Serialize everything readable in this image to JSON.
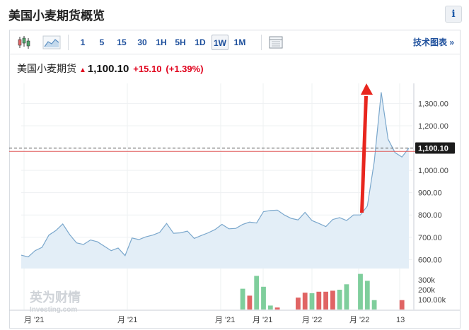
{
  "page": {
    "title": "美国小麦期货概览",
    "info_label": "i"
  },
  "toolbar": {
    "intervals": [
      "1",
      "5",
      "15",
      "30",
      "1H",
      "5H",
      "1D",
      "1W",
      "1M"
    ],
    "active_interval": "1W",
    "tech_link": "技术图表 »"
  },
  "quote": {
    "name": "美国小麦期货",
    "price": "1,100.10",
    "change": "+15.10",
    "change_pct": "(+1.39%)"
  },
  "watermark": {
    "cn": "英为财情",
    "en": "Investing.com"
  },
  "colors": {
    "accent": "#1d4f9c",
    "up": "#e0001b",
    "area_line": "#7aa7cc",
    "area_fill": "#e3eef7",
    "volume_up": "#7fce9c",
    "volume_down": "#e06464",
    "annotation_arrow": "#e8261e"
  },
  "chart_data": [
    {
      "type": "area",
      "title": "",
      "xlabel": "",
      "ylabel": "",
      "x_tick_labels": [
        "月 '21",
        "月 '21",
        "月 '21",
        "月 '21",
        "月 '22",
        "月 '22",
        "13"
      ],
      "y_tick_labels": [
        "600.00",
        "700.00",
        "800.00",
        "900.00",
        "1,000.00",
        "1,100.00",
        "1,200.00",
        "1,300.00"
      ],
      "ylim": [
        560,
        1390
      ],
      "current_price_label": "1,100.10",
      "current_price": 1100.1,
      "reference_line": 1085,
      "grid": true,
      "series": [
        {
          "values": [
            620,
            612,
            640,
            655,
            710,
            730,
            760,
            712,
            675,
            668,
            688,
            680,
            660,
            640,
            652,
            618,
            697,
            690,
            702,
            710,
            722,
            762,
            718,
            720,
            728,
            695,
            708,
            720,
            735,
            758,
            738,
            740,
            758,
            768,
            764,
            815,
            820,
            822,
            800,
            785,
            778,
            812,
            775,
            762,
            748,
            780,
            788,
            775,
            800,
            800,
            840,
            1040,
            1350,
            1140,
            1080,
            1060,
            1100
          ]
        }
      ]
    },
    {
      "type": "bar",
      "title": "Volume",
      "y_tick_labels": [
        "100.00k",
        "200k",
        "300k"
      ],
      "ylim": [
        0,
        400
      ],
      "series": [
        {
          "name": "volume",
          "values": [
            0,
            0,
            0,
            0,
            0,
            0,
            0,
            0,
            0,
            0,
            0,
            0,
            0,
            0,
            0,
            0,
            0,
            0,
            0,
            0,
            0,
            0,
            0,
            0,
            0,
            0,
            0,
            0,
            0,
            0,
            0,
            0,
            210,
            140,
            340,
            230,
            40,
            20,
            0,
            0,
            120,
            170,
            165,
            180,
            180,
            190,
            200,
            255,
            0,
            360,
            290,
            95,
            0,
            0,
            0,
            95,
            0
          ]
        }
      ],
      "direction": [
        "",
        "",
        "",
        "",
        "",
        "",
        "",
        "",
        "",
        "",
        "",
        "",
        "",
        "",
        "",
        "",
        "",
        "",
        "",
        "",
        "",
        "",
        "",
        "",
        "",
        "",
        "",
        "",
        "",
        "",
        "",
        "",
        "up",
        "down",
        "up",
        "up",
        "up",
        "down",
        "",
        "",
        "down",
        "down",
        "up",
        "down",
        "down",
        "down",
        "up",
        "up",
        "",
        "up",
        "up",
        "up",
        "",
        "",
        "",
        "down",
        ""
      ]
    }
  ]
}
